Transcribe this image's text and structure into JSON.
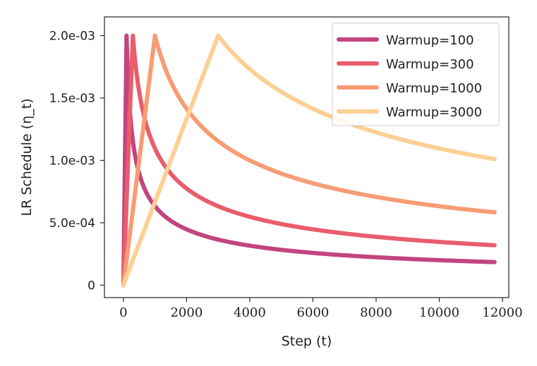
{
  "chart_data": {
    "type": "line",
    "title": "",
    "xlabel": "Step (t)",
    "ylabel": "LR Schedule (η_t)",
    "xlim": [
      -600,
      12200
    ],
    "ylim": [
      -0.0001,
      0.00215
    ],
    "xticks": [
      0,
      2000,
      4000,
      6000,
      8000,
      10000,
      12000
    ],
    "xtick_labels": [
      "0",
      "2000",
      "4000",
      "6000",
      "8000",
      "10000",
      "12000"
    ],
    "yticks": [
      0,
      0.0005,
      0.001,
      0.0015,
      0.002
    ],
    "ytick_labels": [
      "0",
      "5.0e-04",
      "1.0e-03",
      "1.5e-03",
      "2.0e-03"
    ],
    "grid": false,
    "legend_position": "top-right",
    "peak_lr": 0.002,
    "max_step": 11750,
    "schedule": "linear warmup then inverse square root decay",
    "series": [
      {
        "name": "Warmup=100",
        "warmup": 100,
        "color": "#c2457f"
      },
      {
        "name": "Warmup=300",
        "warmup": 300,
        "color": "#e95d6c"
      },
      {
        "name": "Warmup=1000",
        "warmup": 1000,
        "color": "#f79c75"
      },
      {
        "name": "Warmup=3000",
        "warmup": 3000,
        "color": "#fccf94"
      }
    ]
  }
}
